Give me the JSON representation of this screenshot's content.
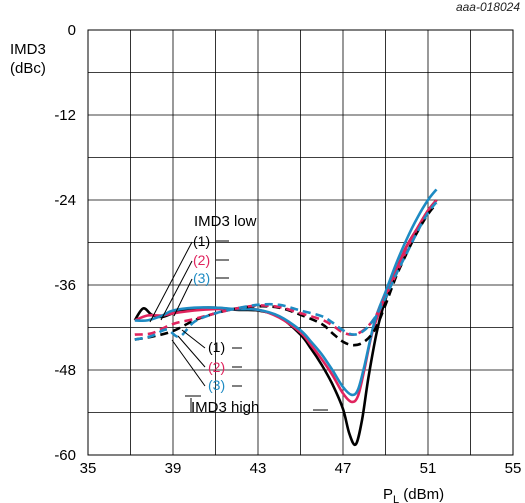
{
  "figure_id": "aaa-018024",
  "chart_data": {
    "type": "line",
    "title": "",
    "xlabel_main": "P",
    "xlabel_sub": "L",
    "xlabel_unit": " (dBm)",
    "ylabel_line1": "IMD3",
    "ylabel_line2": "(dBc)",
    "xlim": [
      35,
      55
    ],
    "ylim": [
      -60,
      0
    ],
    "xticks": [
      35,
      39,
      43,
      47,
      51,
      55
    ],
    "yticks": [
      0,
      -12,
      -24,
      -36,
      -48,
      -60
    ],
    "grid": true,
    "annotations": {
      "low_label": "IMD3 low",
      "high_label": "IMD3 high",
      "low_marks": [
        "(1)",
        "(2)",
        "(3)"
      ],
      "high_marks": [
        "(1)",
        "(2)",
        "(3)"
      ]
    },
    "series": [
      {
        "key": "1",
        "group": "low",
        "color": "#000000",
        "dashed": false,
        "x": [
          37.2,
          37.6,
          38.0,
          38.5,
          39.0,
          40.0,
          41.0,
          42.0,
          43.0,
          44.0,
          45.0,
          45.5,
          46.0,
          46.5,
          47.0,
          47.3,
          47.6,
          47.9,
          48.2,
          48.6,
          49.0,
          49.5,
          50.0,
          50.5,
          51.0,
          51.4
        ],
        "y": [
          -41.0,
          -39.3,
          -40.2,
          -40.5,
          -40.0,
          -39.3,
          -39.2,
          -39.5,
          -39.6,
          -40.5,
          -43.0,
          -45.0,
          -47.3,
          -50.0,
          -53.5,
          -57.0,
          -58.5,
          -55.0,
          -49.0,
          -42.5,
          -38.0,
          -34.0,
          -30.5,
          -28.0,
          -25.5,
          -24.0
        ]
      },
      {
        "key": "2",
        "group": "low",
        "color": "#e0245e",
        "dashed": false,
        "x": [
          37.2,
          37.8,
          38.5,
          39.0,
          40.0,
          41.0,
          42.0,
          43.0,
          44.0,
          45.0,
          45.5,
          46.0,
          46.5,
          47.0,
          47.4,
          47.7,
          48.0,
          48.4,
          49.0,
          49.5,
          50.0,
          50.5,
          51.0,
          51.4
        ],
        "y": [
          -41.0,
          -40.3,
          -40.3,
          -40.0,
          -39.6,
          -39.4,
          -39.4,
          -39.5,
          -40.6,
          -42.7,
          -44.5,
          -46.5,
          -48.7,
          -51.3,
          -52.5,
          -51.7,
          -48.0,
          -42.5,
          -37.5,
          -34.0,
          -30.5,
          -28.0,
          -25.5,
          -24.0
        ]
      },
      {
        "key": "3",
        "group": "low",
        "color": "#1e8bc3",
        "dashed": false,
        "x": [
          37.2,
          37.8,
          38.5,
          39.0,
          40.0,
          41.0,
          42.0,
          43.0,
          44.0,
          45.0,
          45.5,
          46.0,
          46.5,
          47.0,
          47.4,
          47.7,
          48.0,
          48.5,
          49.0,
          49.5,
          50.0,
          50.5,
          51.0,
          51.4
        ],
        "y": [
          -41.0,
          -41.0,
          -40.3,
          -39.6,
          -39.2,
          -39.2,
          -39.4,
          -39.5,
          -40.4,
          -42.4,
          -44.0,
          -45.8,
          -48.0,
          -50.4,
          -51.5,
          -50.8,
          -47.5,
          -41.0,
          -37.0,
          -33.0,
          -29.5,
          -26.5,
          -24.0,
          -22.5
        ]
      },
      {
        "key": "1",
        "group": "high",
        "color": "#000000",
        "dashed": true,
        "x": [
          37.2,
          38.0,
          39.0,
          40.0,
          41.0,
          42.0,
          43.0,
          44.0,
          45.0,
          46.0,
          46.5,
          47.0,
          47.5,
          48.0,
          48.5,
          49.0,
          49.5,
          50.0,
          50.5,
          51.0,
          51.4
        ],
        "y": [
          -43.7,
          -43.3,
          -42.5,
          -41.0,
          -40.0,
          -39.3,
          -39.0,
          -39.2,
          -40.2,
          -41.5,
          -42.8,
          -44.0,
          -44.5,
          -44.0,
          -42.3,
          -38.8,
          -34.8,
          -31.5,
          -28.5,
          -26.0,
          -24.5
        ]
      },
      {
        "key": "2",
        "group": "high",
        "color": "#e0245e",
        "dashed": true,
        "x": [
          37.2,
          38.0,
          39.0,
          40.0,
          41.0,
          42.0,
          43.0,
          44.0,
          45.0,
          46.0,
          46.5,
          47.0,
          47.5,
          48.0,
          48.5,
          49.0,
          49.5,
          50.0,
          50.5,
          51.0,
          51.4
        ],
        "y": [
          -43.0,
          -42.8,
          -41.5,
          -40.8,
          -40.0,
          -39.3,
          -38.9,
          -39.1,
          -40.0,
          -40.9,
          -41.7,
          -42.7,
          -43.0,
          -42.3,
          -40.6,
          -37.6,
          -34.5,
          -31.0,
          -28.0,
          -25.5,
          -24.2
        ]
      },
      {
        "key": "3",
        "group": "high",
        "color": "#1e8bc3",
        "dashed": true,
        "x": [
          37.2,
          38.0,
          38.7,
          39.3,
          40.0,
          41.0,
          42.0,
          43.0,
          44.0,
          45.0,
          46.0,
          46.5,
          47.0,
          47.5,
          48.0,
          48.5,
          49.0,
          49.5,
          50.0,
          50.5,
          51.0,
          51.4
        ],
        "y": [
          -43.7,
          -43.2,
          -42.3,
          -43.3,
          -41.2,
          -40.0,
          -39.3,
          -38.8,
          -38.8,
          -39.6,
          -40.4,
          -41.3,
          -42.4,
          -43.0,
          -42.4,
          -40.6,
          -37.8,
          -34.5,
          -31.5,
          -28.5,
          -25.8,
          -24.3
        ]
      }
    ]
  }
}
